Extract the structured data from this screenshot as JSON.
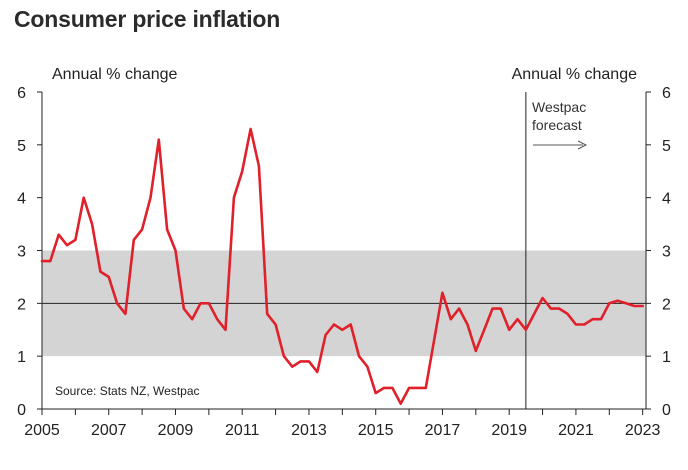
{
  "chart_data": {
    "type": "line",
    "title": "Consumer price inflation",
    "ylabel_left": "Annual % change",
    "ylabel_right": "Annual % change",
    "ylim": [
      0,
      6
    ],
    "yticks": [
      "0",
      "1",
      "2",
      "3",
      "4",
      "5",
      "6"
    ],
    "xlim": [
      2005,
      2023.1
    ],
    "xticks": [
      "2005",
      "2007",
      "2009",
      "2011",
      "2013",
      "2015",
      "2017",
      "2019",
      "2021",
      "2023"
    ],
    "grid": false,
    "target_band": [
      1,
      3
    ],
    "target_midpoint": 2,
    "forecast_start": 2019.5,
    "forecast_label": "Westpac forecast",
    "source": "Source: Stats NZ, Westpac",
    "series": [
      {
        "color": "#e0202a",
        "x": [
          2005.0,
          2005.25,
          2005.5,
          2005.75,
          2006.0,
          2006.25,
          2006.5,
          2006.75,
          2007.0,
          2007.25,
          2007.5,
          2007.75,
          2008.0,
          2008.25,
          2008.5,
          2008.75,
          2009.0,
          2009.25,
          2009.5,
          2009.75,
          2010.0,
          2010.25,
          2010.5,
          2010.75,
          2011.0,
          2011.25,
          2011.5,
          2011.75,
          2012.0,
          2012.25,
          2012.5,
          2012.75,
          2013.0,
          2013.25,
          2013.5,
          2013.75,
          2014.0,
          2014.25,
          2014.5,
          2014.75,
          2015.0,
          2015.25,
          2015.5,
          2015.75,
          2016.0,
          2016.25,
          2016.5,
          2016.75,
          2017.0,
          2017.25,
          2017.5,
          2017.75,
          2018.0,
          2018.25,
          2018.5,
          2018.75,
          2019.0,
          2019.25,
          2019.5,
          2019.75,
          2020.0,
          2020.25,
          2020.5,
          2020.75,
          2021.0,
          2021.25,
          2021.5,
          2021.75,
          2022.0,
          2022.25,
          2022.5,
          2022.75,
          2023.0
        ],
        "values": [
          2.8,
          2.8,
          3.3,
          3.1,
          3.2,
          4.0,
          3.5,
          2.6,
          2.5,
          2.0,
          1.8,
          3.2,
          3.4,
          4.0,
          5.1,
          3.4,
          3.0,
          1.9,
          1.7,
          2.0,
          2.0,
          1.7,
          1.5,
          4.0,
          4.5,
          5.3,
          4.6,
          1.8,
          1.6,
          1.0,
          0.8,
          0.9,
          0.9,
          0.7,
          1.4,
          1.6,
          1.5,
          1.6,
          1.0,
          0.8,
          0.3,
          0.4,
          0.4,
          0.1,
          0.4,
          0.4,
          0.4,
          1.3,
          2.2,
          1.7,
          1.9,
          1.6,
          1.1,
          1.5,
          1.9,
          1.9,
          1.5,
          1.7,
          1.5,
          1.8,
          2.1,
          1.9,
          1.9,
          1.8,
          1.6,
          1.6,
          1.7,
          1.7,
          2.0,
          2.05,
          2.0,
          1.95,
          1.95
        ]
      }
    ]
  }
}
